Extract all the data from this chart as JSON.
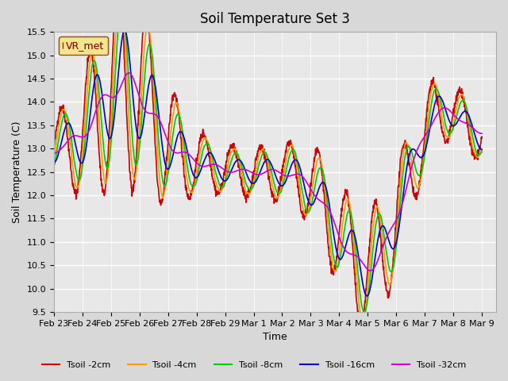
{
  "title": "Soil Temperature Set 3",
  "xlabel": "Time",
  "ylabel": "Soil Temperature (C)",
  "ylim": [
    9.5,
    15.5
  ],
  "xlim_days": 15.5,
  "background_color": "#d8d8d8",
  "plot_bg_color": "#e8e8e8",
  "grid_color": "white",
  "legend_label": "VR_met",
  "series_colors": {
    "Tsoil -2cm": "#cc0000",
    "Tsoil -4cm": "#ff9900",
    "Tsoil -8cm": "#00cc00",
    "Tsoil -16cm": "#0000cc",
    "Tsoil -32cm": "#cc00cc"
  },
  "tick_labels": [
    "Feb 23",
    "Feb 24",
    "Feb 25",
    "Feb 26",
    "Feb 27",
    "Feb 28",
    "Feb 29",
    "Mar 1",
    "Mar 2",
    "Mar 3",
    "Mar 4",
    "Mar 5",
    "Mar 6",
    "Mar 7",
    "Mar 8",
    "Mar 9"
  ],
  "ytick_labels": [
    "9.5",
    "10.0",
    "10.5",
    "11.0",
    "11.5",
    "12.0",
    "12.5",
    "13.0",
    "13.5",
    "14.0",
    "14.5",
    "15.0",
    "15.5"
  ]
}
